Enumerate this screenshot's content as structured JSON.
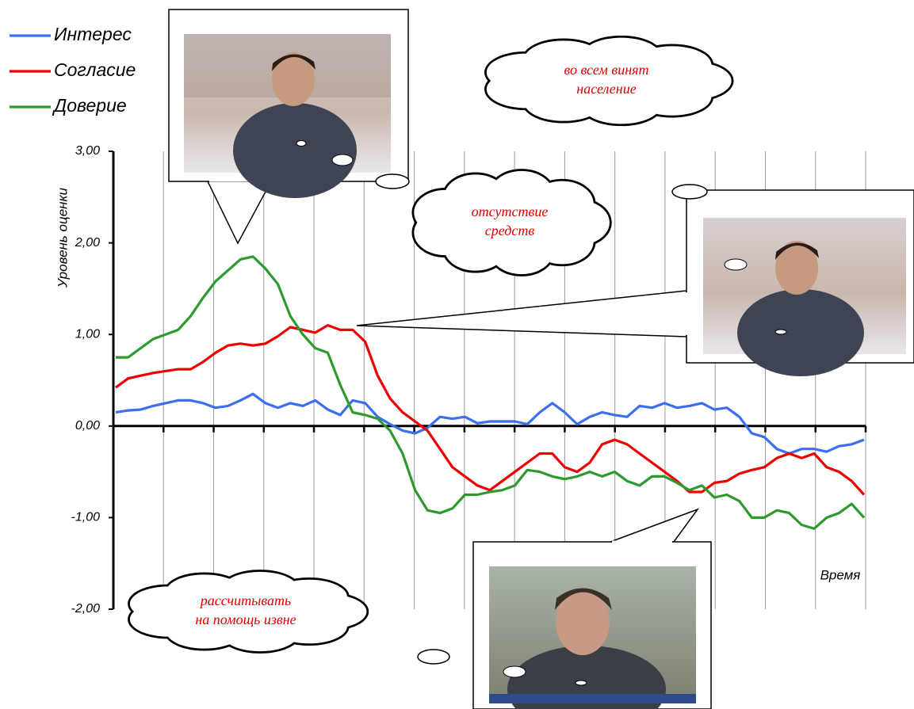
{
  "chart_data": {
    "type": "line",
    "ylabel": "Уровень оценки",
    "xlabel": "Время",
    "ylim": [
      -2,
      3
    ],
    "yticks": [
      {
        "value": -2,
        "label": "-2,00"
      },
      {
        "value": -1,
        "label": "-1,00"
      },
      {
        "value": 0,
        "label": "0,00"
      },
      {
        "value": 1,
        "label": "1,00"
      },
      {
        "value": 2,
        "label": "2,00"
      },
      {
        "value": 3,
        "label": "3,00"
      }
    ],
    "grid": true,
    "legend": "top-left",
    "series": [
      {
        "name": "Интерес",
        "color": "#3c6ff0",
        "values": [
          0.15,
          0.17,
          0.18,
          0.22,
          0.25,
          0.28,
          0.28,
          0.25,
          0.2,
          0.22,
          0.28,
          0.35,
          0.25,
          0.2,
          0.25,
          0.22,
          0.28,
          0.18,
          0.12,
          0.28,
          0.25,
          0.1,
          0.02,
          -0.05,
          -0.08,
          -0.02,
          0.1,
          0.08,
          0.1,
          0.03,
          0.05,
          0.05,
          0.05,
          0.02,
          0.15,
          0.25,
          0.15,
          0.02,
          0.1,
          0.15,
          0.12,
          0.1,
          0.22,
          0.2,
          0.25,
          0.2,
          0.22,
          0.25,
          0.18,
          0.2,
          0.1,
          -0.08,
          -0.12,
          -0.25,
          -0.3,
          -0.25,
          -0.25,
          -0.28,
          -0.22,
          -0.2,
          -0.15
        ]
      },
      {
        "name": "Согласие",
        "color": "#ee0000",
        "values": [
          0.42,
          0.52,
          0.55,
          0.58,
          0.6,
          0.62,
          0.62,
          0.7,
          0.8,
          0.88,
          0.9,
          0.88,
          0.9,
          0.98,
          1.08,
          1.05,
          1.02,
          1.1,
          1.05,
          1.05,
          0.92,
          0.55,
          0.3,
          0.15,
          0.05,
          -0.05,
          -0.25,
          -0.45,
          -0.55,
          -0.65,
          -0.7,
          -0.6,
          -0.5,
          -0.4,
          -0.3,
          -0.3,
          -0.45,
          -0.5,
          -0.4,
          -0.2,
          -0.15,
          -0.2,
          -0.3,
          -0.4,
          -0.5,
          -0.6,
          -0.72,
          -0.72,
          -0.62,
          -0.6,
          -0.52,
          -0.48,
          -0.45,
          -0.35,
          -0.3,
          -0.35,
          -0.3,
          -0.45,
          -0.5,
          -0.6,
          -0.75
        ]
      },
      {
        "name": "Доверие",
        "color": "#2e9a2e",
        "values": [
          0.75,
          0.75,
          0.85,
          0.95,
          1.0,
          1.05,
          1.2,
          1.4,
          1.58,
          1.7,
          1.82,
          1.85,
          1.72,
          1.55,
          1.2,
          1.0,
          0.85,
          0.8,
          0.45,
          0.15,
          0.12,
          0.08,
          -0.05,
          -0.3,
          -0.7,
          -0.92,
          -0.95,
          -0.9,
          -0.75,
          -0.75,
          -0.72,
          -0.7,
          -0.65,
          -0.48,
          -0.5,
          -0.55,
          -0.58,
          -0.55,
          -0.5,
          -0.55,
          -0.5,
          -0.6,
          -0.65,
          -0.55,
          -0.55,
          -0.62,
          -0.7,
          -0.65,
          -0.78,
          -0.75,
          -0.82,
          -1.0,
          -1.0,
          -0.92,
          -0.95,
          -1.08,
          -1.12,
          -1.0,
          -0.95,
          -0.85,
          -1.0
        ]
      }
    ],
    "annotations": [
      {
        "lines": [
          "во всем винят",
          "население"
        ]
      },
      {
        "lines": [
          "отсутствие",
          "средств"
        ]
      },
      {
        "lines": [
          "рассчитывать",
          "на помощь извне"
        ]
      }
    ]
  }
}
